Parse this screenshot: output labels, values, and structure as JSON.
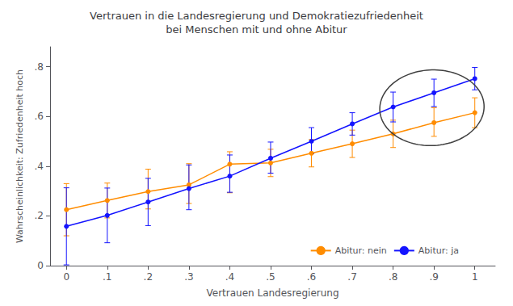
{
  "chart_data": {
    "type": "line",
    "title": "Vertrauen in die Landesregierung und Demokratiezufriedenheit\nbei Menschen mit und ohne Abitur",
    "xlabel": "Vertrauen Landesregierung",
    "ylabel": "Wahrscheinlichkeit: Zufriedenheit hoch",
    "x": [
      0.0,
      0.1,
      0.2,
      0.3,
      0.4,
      0.5,
      0.6,
      0.7,
      0.8,
      0.9,
      1.0
    ],
    "series": [
      {
        "name": "Abitur: nein",
        "color": "#FF8C00",
        "values": [
          0.225,
          0.262,
          0.298,
          0.325,
          0.408,
          0.413,
          0.452,
          0.49,
          0.53,
          0.575,
          0.615
        ],
        "err_lo": [
          0.105,
          0.07,
          0.07,
          0.075,
          0.115,
          0.055,
          0.055,
          0.055,
          0.055,
          0.055,
          0.06
        ],
        "err_hi": [
          0.105,
          0.07,
          0.09,
          0.085,
          0.05,
          0.055,
          0.055,
          0.055,
          0.055,
          0.06,
          0.06
        ]
      },
      {
        "name": "Abitur: ja",
        "color": "#1414FF",
        "values": [
          0.158,
          0.202,
          0.256,
          0.31,
          0.36,
          0.432,
          0.5,
          0.57,
          0.638,
          0.695,
          0.752
        ],
        "err_lo": [
          0.155,
          0.11,
          0.095,
          0.085,
          0.065,
          0.06,
          0.05,
          0.045,
          0.06,
          0.055,
          0.045
        ],
        "err_hi": [
          0.155,
          0.11,
          0.095,
          0.095,
          0.085,
          0.065,
          0.055,
          0.045,
          0.06,
          0.055,
          0.045
        ]
      }
    ],
    "xlim": [
      -0.04,
      1.05
    ],
    "ylim": [
      0.0,
      0.88
    ],
    "xticks": [
      0,
      {
        "value": 0.1,
        "label": ".1"
      },
      {
        "value": 0.2,
        "label": ".2"
      },
      {
        "value": 0.3,
        "label": ".3"
      },
      {
        "value": 0.4,
        "label": ".4"
      },
      {
        "value": 0.5,
        "label": ".5"
      },
      {
        "value": 0.6,
        "label": ".6"
      },
      {
        "value": 0.7,
        "label": ".7"
      },
      {
        "value": 0.8,
        "label": ".8"
      },
      {
        "value": 0.9,
        "label": ".9"
      },
      1
    ],
    "yticks": [
      0,
      {
        "value": 0.2,
        "label": ".2"
      },
      {
        "value": 0.4,
        "label": ".4"
      },
      {
        "value": 0.6,
        "label": ".6"
      },
      {
        "value": 0.8,
        "label": ".8"
      }
    ],
    "grid": false,
    "legend": "lower right",
    "marker": "circle",
    "line_style": "solid",
    "ellipse": {
      "center_x": 0.895,
      "center_y": 0.635,
      "width": 0.255,
      "height": 0.305,
      "angle": -5
    }
  }
}
